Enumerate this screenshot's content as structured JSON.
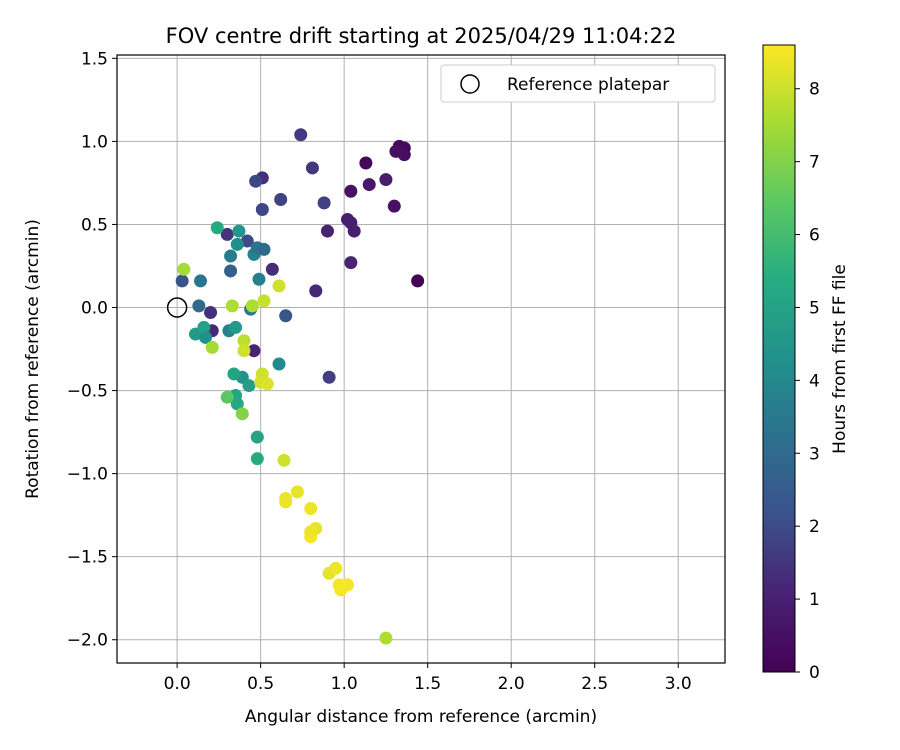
{
  "chart_data": {
    "type": "scatter",
    "title": "FOV centre drift starting at 2025/04/29 11:04:22",
    "xlabel": "Angular distance from reference (arcmin)",
    "ylabel": "Rotation from reference (arcmin)",
    "xlim": [
      -0.36,
      3.28
    ],
    "ylim": [
      -2.14,
      1.52
    ],
    "xticks": [
      0.0,
      0.5,
      1.0,
      1.5,
      2.0,
      2.5,
      3.0
    ],
    "yticks": [
      -2.0,
      -1.5,
      -1.0,
      -0.5,
      0.0,
      0.5,
      1.0,
      1.5
    ],
    "xtick_labels": [
      "0.0",
      "0.5",
      "1.0",
      "1.5",
      "2.0",
      "2.5",
      "3.0"
    ],
    "ytick_labels": [
      "−2.0",
      "−1.5",
      "−1.0",
      "−0.5",
      "0.0",
      "0.5",
      "1.0",
      "1.5"
    ],
    "grid": true,
    "legend": {
      "placement": "top-right",
      "entries": [
        "Reference platepar"
      ]
    },
    "reference_point": {
      "x": 0.0,
      "y": 0.0
    },
    "colorbar": {
      "label": "Hours from first FF file",
      "range": [
        0,
        8.6
      ],
      "ticks": [
        0,
        1,
        2,
        3,
        4,
        5,
        6,
        7,
        8
      ],
      "tick_labels": [
        "0",
        "1",
        "2",
        "3",
        "4",
        "5",
        "6",
        "7",
        "8"
      ],
      "colormap": "viridis"
    },
    "points": [
      {
        "x": 1.44,
        "y": 0.16,
        "h": 0.05
      },
      {
        "x": 1.13,
        "y": 0.87,
        "h": 0.2
      },
      {
        "x": 1.33,
        "y": 0.97,
        "h": 0.3
      },
      {
        "x": 1.36,
        "y": 0.96,
        "h": 0.35
      },
      {
        "x": 1.36,
        "y": 0.92,
        "h": 0.4
      },
      {
        "x": 1.31,
        "y": 0.94,
        "h": 0.45
      },
      {
        "x": 1.3,
        "y": 0.61,
        "h": 0.5
      },
      {
        "x": 1.04,
        "y": 0.7,
        "h": 0.55
      },
      {
        "x": 1.15,
        "y": 0.74,
        "h": 0.7
      },
      {
        "x": 1.25,
        "y": 0.77,
        "h": 0.85
      },
      {
        "x": 1.02,
        "y": 0.53,
        "h": 0.9
      },
      {
        "x": 1.04,
        "y": 0.51,
        "h": 0.95
      },
      {
        "x": 1.06,
        "y": 0.46,
        "h": 1.0
      },
      {
        "x": 1.04,
        "y": 0.27,
        "h": 1.05
      },
      {
        "x": 0.9,
        "y": 0.46,
        "h": 1.1
      },
      {
        "x": 0.83,
        "y": 0.1,
        "h": 1.2
      },
      {
        "x": 0.74,
        "y": 1.04,
        "h": 1.6
      },
      {
        "x": 0.81,
        "y": 0.84,
        "h": 1.55
      },
      {
        "x": 0.88,
        "y": 0.63,
        "h": 1.75
      },
      {
        "x": 0.91,
        "y": -0.42,
        "h": 1.7
      },
      {
        "x": 0.62,
        "y": 0.65,
        "h": 1.8
      },
      {
        "x": 0.51,
        "y": 0.78,
        "h": 1.35
      },
      {
        "x": 0.47,
        "y": 0.76,
        "h": 1.9
      },
      {
        "x": 0.51,
        "y": 0.59,
        "h": 1.9
      },
      {
        "x": 0.57,
        "y": 0.23,
        "h": 1.3
      },
      {
        "x": 0.65,
        "y": -0.05,
        "h": 2.3
      },
      {
        "x": 0.46,
        "y": -0.26,
        "h": 1.1
      },
      {
        "x": 0.42,
        "y": 0.4,
        "h": 2.0
      },
      {
        "x": 0.3,
        "y": 0.44,
        "h": 1.5
      },
      {
        "x": 0.2,
        "y": -0.03,
        "h": 1.4
      },
      {
        "x": 0.21,
        "y": -0.14,
        "h": 1.2
      },
      {
        "x": 0.03,
        "y": 0.16,
        "h": 2.2
      },
      {
        "x": 0.13,
        "y": 0.01,
        "h": 3.0
      },
      {
        "x": 0.14,
        "y": 0.16,
        "h": 3.4
      },
      {
        "x": 0.32,
        "y": 0.22,
        "h": 2.6
      },
      {
        "x": 0.32,
        "y": 0.31,
        "h": 3.6
      },
      {
        "x": 0.36,
        "y": 0.38,
        "h": 4.2
      },
      {
        "x": 0.37,
        "y": 0.46,
        "h": 4.5
      },
      {
        "x": 0.46,
        "y": 0.32,
        "h": 3.8
      },
      {
        "x": 0.48,
        "y": 0.36,
        "h": 3.3
      },
      {
        "x": 0.52,
        "y": 0.35,
        "h": 3.0
      },
      {
        "x": 0.49,
        "y": 0.17,
        "h": 3.7
      },
      {
        "x": 0.44,
        "y": -0.01,
        "h": 3.4
      },
      {
        "x": 0.24,
        "y": 0.48,
        "h": 5.3
      },
      {
        "x": 0.31,
        "y": -0.14,
        "h": 3.8
      },
      {
        "x": 0.35,
        "y": -0.12,
        "h": 4.6
      },
      {
        "x": 0.11,
        "y": -0.16,
        "h": 4.7
      },
      {
        "x": 0.16,
        "y": -0.12,
        "h": 4.9
      },
      {
        "x": 0.17,
        "y": -0.18,
        "h": 4.3
      },
      {
        "x": 0.39,
        "y": -0.42,
        "h": 4.4
      },
      {
        "x": 0.34,
        "y": -0.4,
        "h": 5.0
      },
      {
        "x": 0.43,
        "y": -0.47,
        "h": 4.8
      },
      {
        "x": 0.35,
        "y": -0.53,
        "h": 5.1
      },
      {
        "x": 0.36,
        "y": -0.58,
        "h": 5.2
      },
      {
        "x": 0.61,
        "y": -0.34,
        "h": 4.1
      },
      {
        "x": 0.48,
        "y": -0.78,
        "h": 5.0
      },
      {
        "x": 0.48,
        "y": -0.91,
        "h": 5.3
      },
      {
        "x": 0.3,
        "y": -0.54,
        "h": 6.4
      },
      {
        "x": 0.39,
        "y": -0.64,
        "h": 7.0
      },
      {
        "x": 0.21,
        "y": -0.24,
        "h": 7.5
      },
      {
        "x": 0.04,
        "y": 0.23,
        "h": 7.5
      },
      {
        "x": 0.33,
        "y": 0.01,
        "h": 7.6
      },
      {
        "x": 0.45,
        "y": 0.01,
        "h": 7.6
      },
      {
        "x": 0.4,
        "y": -0.2,
        "h": 7.8
      },
      {
        "x": 0.4,
        "y": -0.26,
        "h": 8.0
      },
      {
        "x": 0.52,
        "y": 0.04,
        "h": 7.9
      },
      {
        "x": 0.61,
        "y": 0.13,
        "h": 8.0
      },
      {
        "x": 0.51,
        "y": -0.4,
        "h": 8.0
      },
      {
        "x": 0.5,
        "y": -0.45,
        "h": 8.1
      },
      {
        "x": 0.54,
        "y": -0.46,
        "h": 8.2
      },
      {
        "x": 0.64,
        "y": -0.92,
        "h": 8.0
      },
      {
        "x": 0.65,
        "y": -1.15,
        "h": 8.3
      },
      {
        "x": 0.65,
        "y": -1.17,
        "h": 8.4
      },
      {
        "x": 0.72,
        "y": -1.11,
        "h": 8.3
      },
      {
        "x": 0.8,
        "y": -1.21,
        "h": 8.4
      },
      {
        "x": 0.83,
        "y": -1.33,
        "h": 8.3
      },
      {
        "x": 0.8,
        "y": -1.38,
        "h": 8.5
      },
      {
        "x": 0.8,
        "y": -1.35,
        "h": 8.4
      },
      {
        "x": 0.91,
        "y": -1.6,
        "h": 8.3
      },
      {
        "x": 0.95,
        "y": -1.57,
        "h": 8.4
      },
      {
        "x": 0.97,
        "y": -1.67,
        "h": 8.5
      },
      {
        "x": 0.98,
        "y": -1.7,
        "h": 8.5
      },
      {
        "x": 1.02,
        "y": -1.67,
        "h": 8.5
      },
      {
        "x": 1.25,
        "y": -1.99,
        "h": 7.6
      }
    ]
  }
}
